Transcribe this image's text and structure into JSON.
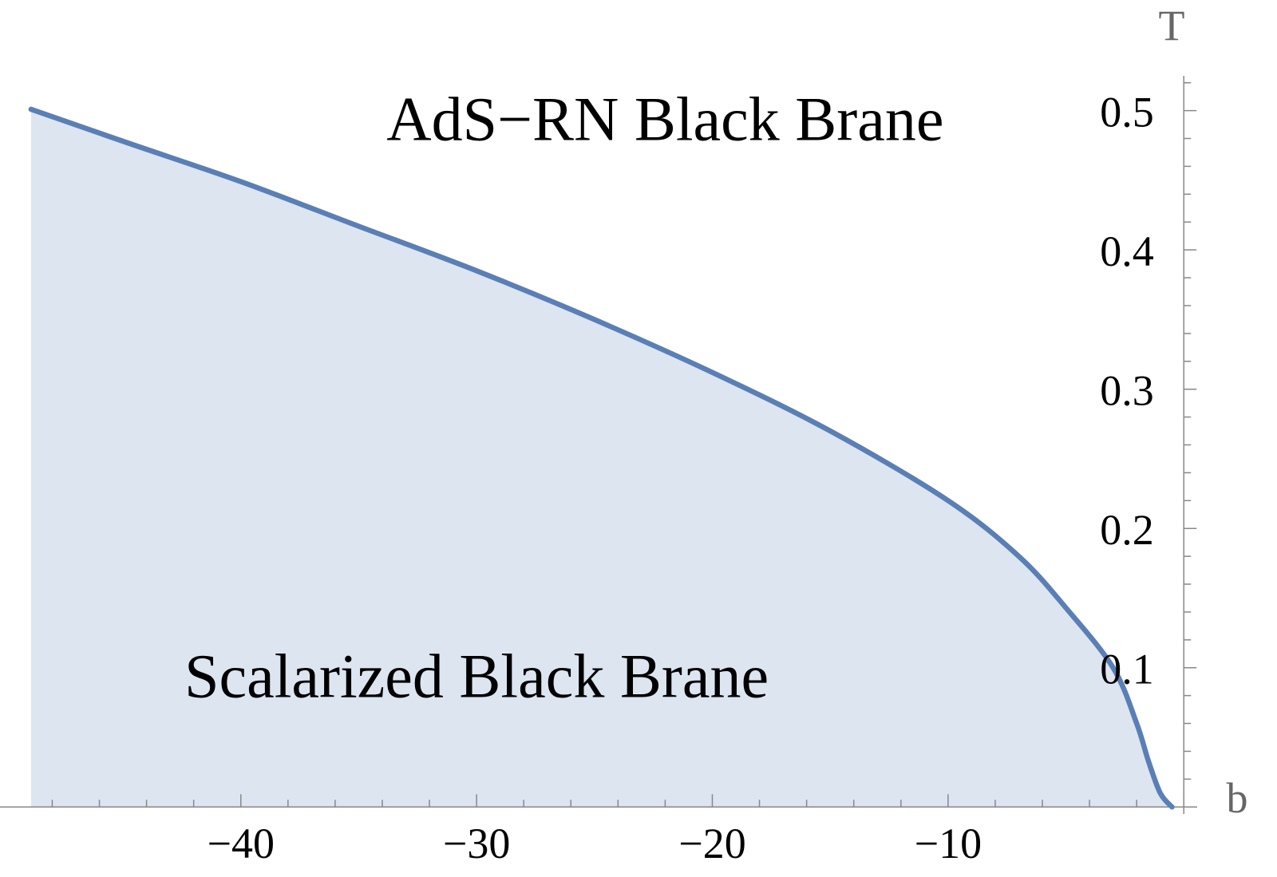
{
  "chart_data": {
    "type": "area",
    "title": "",
    "xlabel": "b",
    "ylabel": "T",
    "xlim": [
      -49.2,
      0.5
    ],
    "ylim": [
      -0.005,
      0.525
    ],
    "x_ticks": [
      -40,
      -30,
      -20,
      -10
    ],
    "y_ticks": [
      0.1,
      0.2,
      0.3,
      0.4,
      0.5
    ],
    "x_tick_labels": [
      "−40",
      "−30",
      "−20",
      "−10"
    ],
    "y_tick_labels": [
      "0.1",
      "0.2",
      "0.3",
      "0.4",
      "0.5"
    ],
    "grid": false,
    "annotations": [
      {
        "text": "AdS−RN Black Brane",
        "x": -22,
        "y": 0.495
      },
      {
        "text": "Scalarized Black Brane",
        "x": -30,
        "y": 0.095
      }
    ],
    "series": [
      {
        "x": [
          -48.9,
          -45,
          -40,
          -35,
          -30,
          -25,
          -20,
          -15,
          -10,
          -7,
          -5,
          -3,
          -2,
          -1.5,
          -1,
          -0.5
        ],
        "y": [
          0.501,
          0.478,
          0.449,
          0.417,
          0.385,
          0.35,
          0.312,
          0.27,
          0.22,
          0.18,
          0.143,
          0.1,
          0.06,
          0.033,
          0.01,
          0.0
        ]
      }
    ],
    "colors": {
      "line": "#5a7fb5",
      "fill": "#dde5f1",
      "axis": "#888888"
    }
  }
}
